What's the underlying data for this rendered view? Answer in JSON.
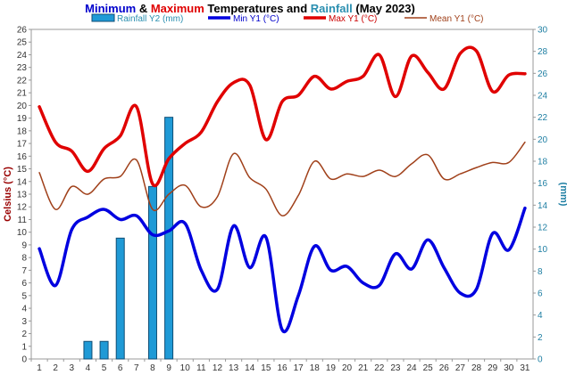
{
  "chart_data": {
    "type": "line",
    "title": {
      "parts": [
        {
          "text": "Minimum",
          "color": "#0000cc"
        },
        {
          "text": " & ",
          "color": "#000000"
        },
        {
          "text": "Maximum",
          "color": "#e00000"
        },
        {
          "text": " Temperatures and ",
          "color": "#000000"
        },
        {
          "text": "Rainfall",
          "color": "#2a8fb0"
        },
        {
          "text": " (May 2023)",
          "color": "#000000"
        }
      ]
    },
    "y_left": {
      "label": "Celsius (°C)",
      "min": 0,
      "max": 26,
      "step": 1,
      "color": "#990000"
    },
    "y_right": {
      "label": "(mm)",
      "min": 0,
      "max": 30,
      "step": 2,
      "color": "#1f7fa3"
    },
    "x": [
      1,
      2,
      3,
      4,
      5,
      6,
      7,
      8,
      9,
      10,
      11,
      12,
      13,
      14,
      15,
      16,
      17,
      18,
      19,
      20,
      21,
      22,
      23,
      24,
      25,
      26,
      27,
      28,
      29,
      30,
      31
    ],
    "grid": false,
    "legend_position": "top",
    "series": [
      {
        "name": "Rainfall Y2 (mm)",
        "kind": "bar",
        "axis": "right",
        "color": "#1f9ad6",
        "edge": "#104e75",
        "values": [
          0,
          0,
          0,
          1.6,
          1.6,
          11,
          0,
          15.7,
          22,
          0,
          0,
          0,
          0,
          0,
          0,
          0,
          0,
          0,
          0,
          0,
          0,
          0,
          0,
          0,
          0,
          0,
          0,
          0,
          0,
          0,
          0
        ]
      },
      {
        "name": "Min Y1 (°C)",
        "kind": "line",
        "axis": "left",
        "color": "#0000e0",
        "width": 3.5,
        "values": [
          8.7,
          5.8,
          10.2,
          11.2,
          11.8,
          11.0,
          11.3,
          9.8,
          10.1,
          10.7,
          7.0,
          5.5,
          10.5,
          7.2,
          9.6,
          2.3,
          5.0,
          8.9,
          7.0,
          7.3,
          6.0,
          5.8,
          8.3,
          7.1,
          9.4,
          7.2,
          5.2,
          5.5,
          9.9,
          8.6,
          11.9
        ]
      },
      {
        "name": "Max Y1 (°C)",
        "kind": "line",
        "axis": "left",
        "color": "#e00000",
        "width": 3.5,
        "values": [
          19.9,
          17.1,
          16.4,
          14.8,
          16.6,
          17.6,
          19.9,
          13.8,
          15.8,
          17.0,
          17.9,
          20.3,
          21.8,
          21.6,
          17.3,
          20.3,
          20.8,
          22.3,
          21.3,
          21.9,
          22.3,
          24.0,
          20.7,
          23.9,
          22.6,
          21.3,
          24.1,
          24.3,
          21.1,
          22.4,
          22.5
        ]
      },
      {
        "name": "Mean Y1 (°C)",
        "kind": "line",
        "axis": "left",
        "color": "#a0401a",
        "width": 1.5,
        "values": [
          14.7,
          11.8,
          13.6,
          13.0,
          14.2,
          14.4,
          15.7,
          11.8,
          13.0,
          13.7,
          12.0,
          12.8,
          16.2,
          14.3,
          13.4,
          11.3,
          12.9,
          15.6,
          14.2,
          14.6,
          14.4,
          14.9,
          14.4,
          15.4,
          16.1,
          14.2,
          14.6,
          15.1,
          15.5,
          15.5,
          17.1
        ]
      }
    ]
  }
}
